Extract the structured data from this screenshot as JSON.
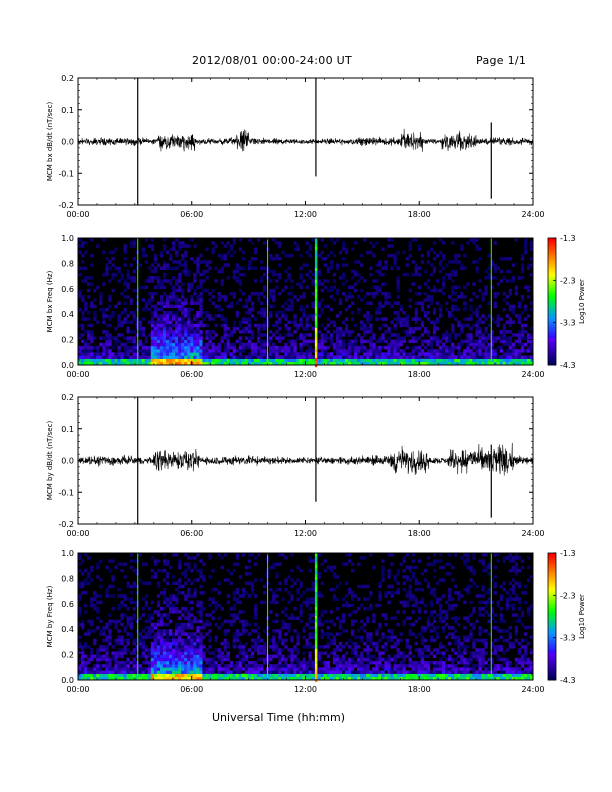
{
  "header": {
    "title": "2012/08/01   00:00-24:00 UT",
    "page": "Page 1/1"
  },
  "x_axis_label": "Universal Time (hh:mm)",
  "chart_data": [
    {
      "type": "line",
      "title": "",
      "ylabel": "MCM bx dB/dt (nT/sec)",
      "xlabel": "",
      "xlim": [
        "00:00",
        "24:00"
      ],
      "x_ticks": [
        "00:00",
        "06:00",
        "12:00",
        "18:00",
        "24:00"
      ],
      "ylim": [
        -0.2,
        0.2
      ],
      "y_ticks": [
        "-0.2",
        "-0.1",
        "0.0",
        "0.1",
        "0.2"
      ],
      "description_series": {
        "baseline": 0.0,
        "noise_amplitude": 0.02,
        "active_intervals_hours": [
          [
            4.2,
            6.2
          ],
          [
            8.3,
            9.0
          ],
          [
            17.0,
            18.2
          ],
          [
            19.2,
            21.0
          ]
        ],
        "spikes": [
          {
            "t_hours": 3.15,
            "max": 0.21,
            "min": -0.21
          },
          {
            "t_hours": 12.55,
            "max": 0.21,
            "min": -0.11
          },
          {
            "t_hours": 21.8,
            "max": 0.06,
            "min": -0.18
          }
        ]
      }
    },
    {
      "type": "heatmap",
      "title": "",
      "ylabel": "MCM bx Freq (Hz)",
      "xlim": [
        "00:00",
        "24:00"
      ],
      "x_ticks": [
        "00:00",
        "06:00",
        "12:00",
        "18:00",
        "24:00"
      ],
      "ylim": [
        0.0,
        1.0
      ],
      "y_ticks": [
        "0.0",
        "0.2",
        "0.4",
        "0.6",
        "0.8",
        "1.0"
      ],
      "colorbar": {
        "label": "Log10 Power",
        "min": -4.3,
        "max": -1.3,
        "ticks": [
          "-1.3",
          "-2.3",
          "-3.3",
          "-4.3"
        ]
      },
      "vertical_lines_hours": [
        3.15,
        10.0,
        12.55,
        21.8
      ],
      "enhanced_intervals_hours": [
        [
          3.8,
          6.5
        ]
      ]
    },
    {
      "type": "line",
      "title": "",
      "ylabel": "MCM by dB/dt (nT/sec)",
      "xlabel": "",
      "xlim": [
        "00:00",
        "24:00"
      ],
      "x_ticks": [
        "00:00",
        "06:00",
        "12:00",
        "18:00",
        "24:00"
      ],
      "ylim": [
        -0.2,
        0.2
      ],
      "y_ticks": [
        "-0.2",
        "-0.1",
        "0.0",
        "0.1",
        "0.2"
      ],
      "description_series": {
        "baseline": 0.0,
        "noise_amplitude": 0.025,
        "active_intervals_hours": [
          [
            4.0,
            6.4
          ],
          [
            16.5,
            18.5
          ],
          [
            19.5,
            23.0
          ]
        ],
        "spikes": [
          {
            "t_hours": 3.15,
            "max": 0.21,
            "min": -0.21
          },
          {
            "t_hours": 12.55,
            "max": 0.21,
            "min": -0.13
          },
          {
            "t_hours": 21.8,
            "max": 0.05,
            "min": -0.18
          }
        ]
      }
    },
    {
      "type": "heatmap",
      "title": "",
      "ylabel": "MCM by Freq (Hz)",
      "xlim": [
        "00:00",
        "24:00"
      ],
      "x_ticks": [
        "00:00",
        "06:00",
        "12:00",
        "18:00",
        "24:00"
      ],
      "ylim": [
        0.0,
        1.0
      ],
      "y_ticks": [
        "0.0",
        "0.2",
        "0.4",
        "0.6",
        "0.8",
        "1.0"
      ],
      "colorbar": {
        "label": "Log10 Power",
        "min": -4.3,
        "max": -1.3,
        "ticks": [
          "-1.3",
          "-2.3",
          "-3.3",
          "-4.3"
        ]
      },
      "vertical_lines_hours": [
        3.15,
        10.0,
        12.55,
        21.8
      ],
      "enhanced_intervals_hours": [
        [
          3.8,
          6.5
        ]
      ]
    }
  ]
}
